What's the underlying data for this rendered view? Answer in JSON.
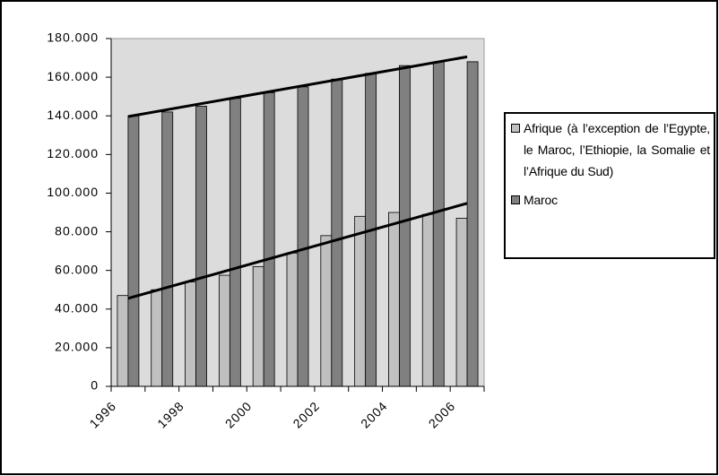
{
  "chart_data": {
    "type": "bar",
    "categories": [
      "1996",
      null,
      "1998",
      null,
      "2000",
      null,
      "2002",
      null,
      "2004",
      null,
      "2006"
    ],
    "series": [
      {
        "name": "Afrique (à l’exception de l’Egypte, le Maroc, l’Ethiopie, la Somalie et l’Afrique du Sud)",
        "color": "#c0c0c0",
        "values": [
          47000,
          50000,
          54000,
          57500,
          62000,
          69000,
          78000,
          88000,
          90000,
          89000,
          87000
        ]
      },
      {
        "name": "Maroc",
        "color": "#808080",
        "values": [
          140000,
          142000,
          145000,
          149000,
          152000,
          155000,
          159000,
          162000,
          166000,
          168000,
          168000
        ]
      }
    ],
    "ylim": [
      0,
      180000
    ],
    "yticks": [
      0,
      {
        "value": 20000,
        "label": "20.000"
      },
      {
        "value": 40000,
        "label": "40.000"
      },
      {
        "value": 60000,
        "label": "60.000"
      },
      {
        "value": 80000,
        "label": "80.000"
      },
      {
        "value": 100000,
        "label": "100.000"
      },
      {
        "value": 120000,
        "label": "120.000"
      },
      {
        "value": 140000,
        "label": "140.000"
      },
      {
        "value": 160000,
        "label": "160.000"
      },
      {
        "value": 180000,
        "label": "180.000"
      }
    ],
    "grid": false,
    "trendlines": true,
    "legend": "right"
  }
}
